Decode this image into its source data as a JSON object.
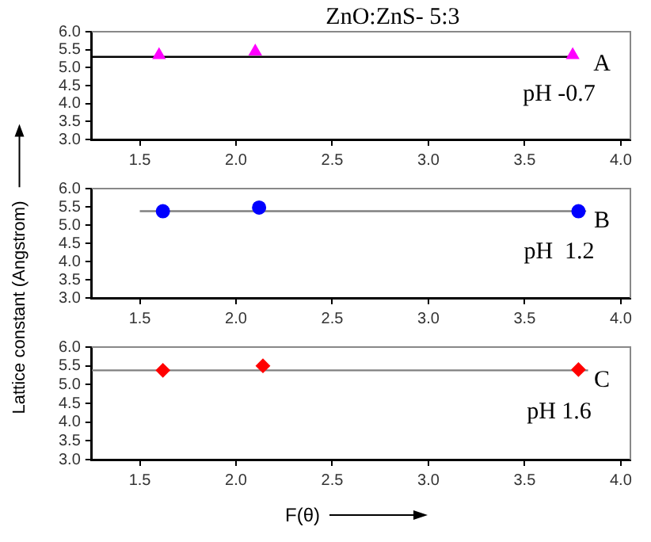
{
  "chart_data": [
    {
      "type": "scatter",
      "title": "ZnO:ZnS- 5:3",
      "annotations": [
        "A",
        "pH -0.7"
      ],
      "xlim": [
        1.25,
        4.05
      ],
      "ylim": [
        3,
        6
      ],
      "xticks": [
        1.5,
        {
          "value": 2,
          "label": "2.0"
        },
        2.5,
        {
          "value": 3,
          "label": "3.0"
        },
        3.5,
        {
          "value": 4,
          "label": "4.0"
        }
      ],
      "yticks": [
        {
          "value": 3,
          "label": "3.0"
        },
        3.5,
        {
          "value": 4,
          "label": "4.0"
        },
        4.5,
        {
          "value": 5,
          "label": "5.0"
        },
        5.5,
        {
          "value": 6,
          "label": "6.0"
        }
      ],
      "grid": false,
      "series": [
        {
          "type": "scatter",
          "marker": "triangle",
          "color": "#ff00ff",
          "x": [
            1.6,
            2.1,
            3.75
          ],
          "values": [
            5.35,
            5.45,
            5.35
          ]
        },
        {
          "type": "line",
          "marker": "none",
          "color": "#000000",
          "x": [
            1.25,
            3.75
          ],
          "values": [
            5.3,
            5.3
          ]
        }
      ]
    },
    {
      "type": "scatter",
      "ylabel": "Lattice constant (Angstrom)",
      "annotations": [
        "B",
        "pH  1.2"
      ],
      "xlim": [
        1.25,
        4.05
      ],
      "ylim": [
        3,
        6
      ],
      "xticks": [
        1.5,
        {
          "value": 2,
          "label": "2.0"
        },
        2.5,
        {
          "value": 3,
          "label": "3.0"
        },
        3.5,
        {
          "value": 4,
          "label": "4.0"
        }
      ],
      "yticks": [
        {
          "value": 3,
          "label": "3.0"
        },
        3.5,
        {
          "value": 4,
          "label": "4.0"
        },
        4.5,
        {
          "value": 5,
          "label": "5.0"
        },
        5.5,
        {
          "value": 6,
          "label": "6.0"
        }
      ],
      "grid": false,
      "series": [
        {
          "type": "scatter",
          "marker": "circle",
          "color": "#0000ff",
          "x": [
            1.62,
            2.12,
            3.78
          ],
          "values": [
            5.38,
            5.48,
            5.38
          ]
        },
        {
          "type": "line",
          "marker": "none",
          "color": "#808080",
          "x": [
            1.5,
            3.82
          ],
          "values": [
            5.38,
            5.38
          ]
        }
      ]
    },
    {
      "type": "scatter",
      "xlabel": "F(θ)",
      "annotations": [
        "C",
        "pH 1.6"
      ],
      "xlim": [
        1.25,
        4.05
      ],
      "ylim": [
        3,
        6
      ],
      "xticks": [
        1.5,
        {
          "value": 2,
          "label": "2.0"
        },
        2.5,
        {
          "value": 3,
          "label": "3.0"
        },
        3.5,
        {
          "value": 4,
          "label": "4.0"
        }
      ],
      "yticks": [
        {
          "value": 3,
          "label": "3.0"
        },
        3.5,
        {
          "value": 4,
          "label": "4.0"
        },
        4.5,
        {
          "value": 5,
          "label": "5.0"
        },
        5.5,
        {
          "value": 6,
          "label": "6.0"
        }
      ],
      "grid": false,
      "series": [
        {
          "type": "scatter",
          "marker": "diamond",
          "color": "#ff0000",
          "x": [
            1.62,
            2.14,
            3.78
          ],
          "values": [
            5.38,
            5.5,
            5.4
          ]
        },
        {
          "type": "line",
          "marker": "none",
          "color": "#808080",
          "x": [
            1.25,
            3.83
          ],
          "values": [
            5.38,
            5.38
          ]
        }
      ]
    }
  ]
}
